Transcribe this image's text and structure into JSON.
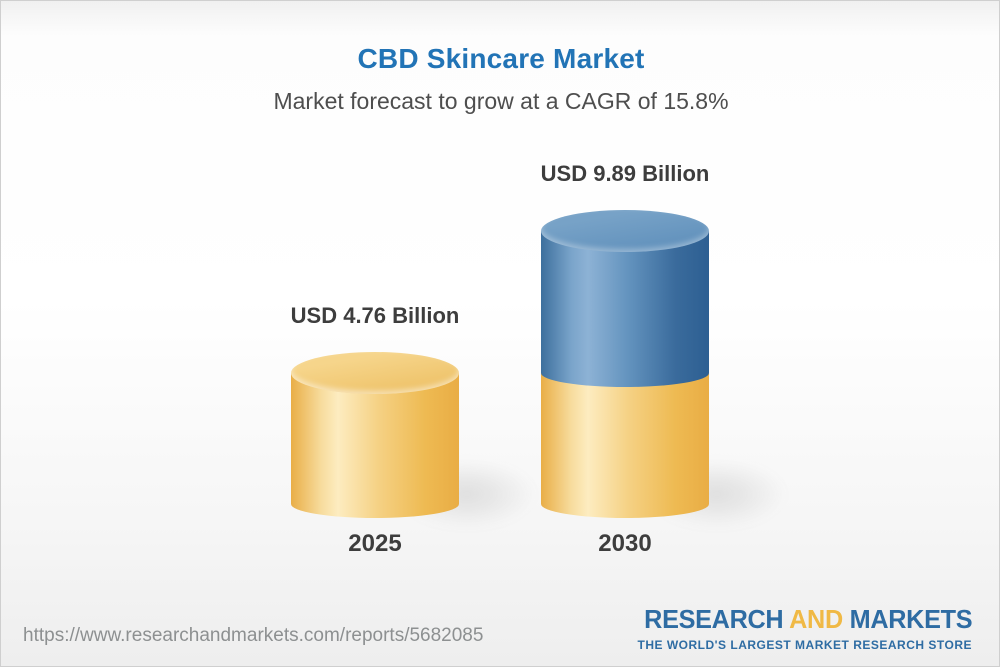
{
  "header": {
    "title": "CBD Skincare Market",
    "subtitle": "Market forecast to grow at a CAGR of 15.8%"
  },
  "chart_data": {
    "type": "bar",
    "style": "3d-cylinder",
    "title": "CBD Skincare Market",
    "subtitle": "Market forecast to grow at a CAGR of 15.8%",
    "cagr_percent": 15.8,
    "unit": "USD Billion",
    "categories": [
      "2025",
      "2030"
    ],
    "values": [
      4.76,
      9.89
    ],
    "value_labels": [
      "USD 4.76 Billion",
      "USD 9.89 Billion"
    ],
    "axes_visible": false,
    "legend_visible": false,
    "bars": [
      {
        "category": "2025",
        "label": "USD 4.76 Billion",
        "segments": [
          {
            "theme": "gold",
            "to": 4.76
          }
        ]
      },
      {
        "category": "2030",
        "label": "USD 9.89 Billion",
        "segments": [
          {
            "theme": "gold",
            "to": 4.76
          },
          {
            "theme": "blue",
            "to": 9.89
          }
        ]
      }
    ],
    "colors": {
      "gold_bar": "#f0c266",
      "gold_edge": "#e9ae47",
      "gold_highlight": "#fdecc0",
      "blue_bar": "#5d8cb7",
      "blue_edge": "#2d5f92",
      "blue_highlight": "#8db2d5"
    }
  },
  "footer": {
    "source_url": "https://www.researchandmarkets.com/reports/5682085",
    "logo": {
      "part1": "RESEARCH ",
      "part2": "AND",
      "part3": " MARKETS",
      "tagline": "THE WORLD'S LARGEST MARKET RESEARCH STORE"
    }
  },
  "colors": {
    "title_blue": "#2274b6",
    "subtitle_gray": "#4e4e4e",
    "label_dark": "#3d3d3d",
    "url_gray": "#8d9091",
    "logo_blue": "#2e6ca3",
    "logo_gold": "#f0b945",
    "border_gray": "#cfcfcf"
  }
}
